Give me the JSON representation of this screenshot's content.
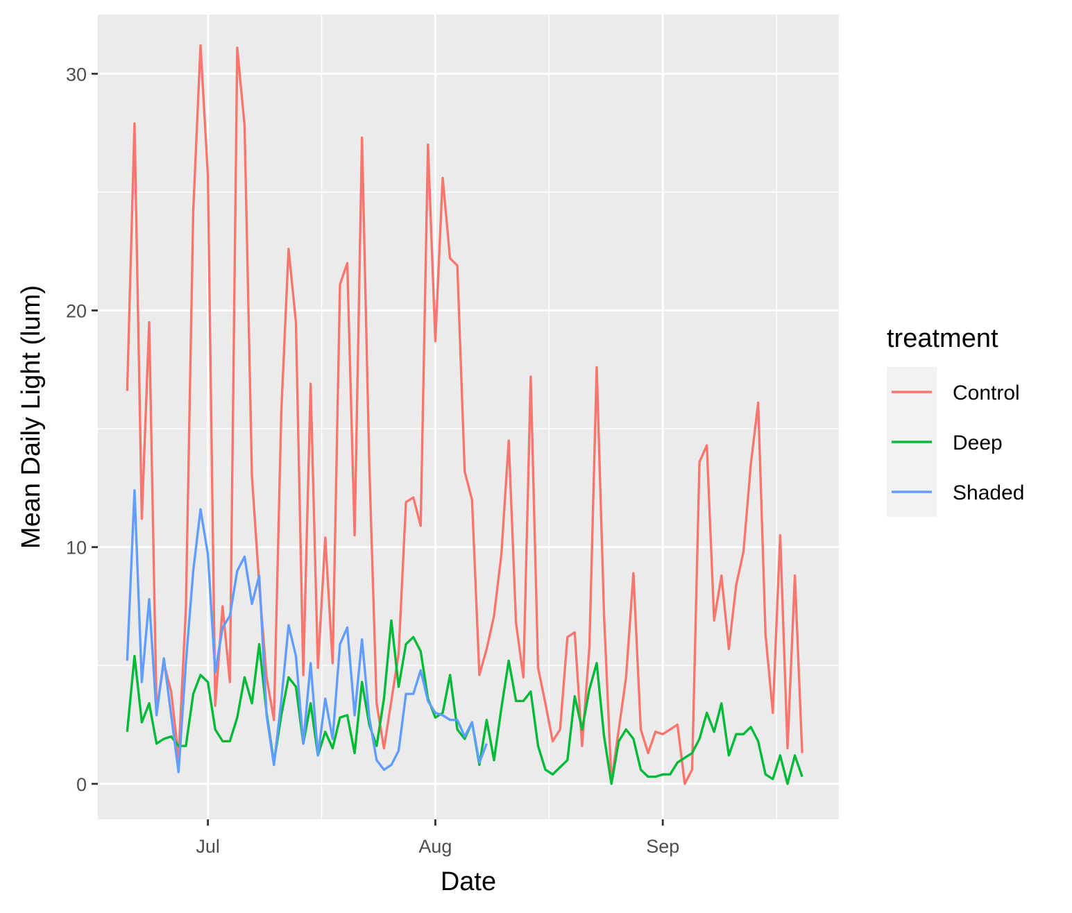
{
  "chart_data": {
    "type": "line",
    "title": "",
    "xlabel": "Date",
    "ylabel": "Mean Daily Light (lum)",
    "x_ticks": [
      {
        "date": "2021-07-01",
        "label": "Jul"
      },
      {
        "date": "2021-08-01",
        "label": "Aug"
      },
      {
        "date": "2021-09-01",
        "label": "Sep"
      }
    ],
    "y_ticks": [
      0,
      10,
      20,
      30
    ],
    "xlim": [
      "2021-06-16",
      "2021-09-25"
    ],
    "ylim": [
      -1.5,
      32.5
    ],
    "grid": true,
    "legend": {
      "title": "treatment",
      "position": "right"
    },
    "series": [
      {
        "name": "Control",
        "color": "#F8766D",
        "start_date": "2021-06-20",
        "values": [
          16.6,
          27.9,
          11.2,
          19.5,
          3.1,
          5.1,
          3.9,
          1.1,
          7.4,
          24.2,
          31.2,
          25.7,
          3.3,
          7.5,
          4.3,
          31.1,
          27.8,
          13.0,
          8.4,
          4.5,
          2.7,
          15.7,
          22.6,
          19.5,
          4.6,
          16.9,
          4.9,
          10.4,
          5.1,
          21.1,
          22.0,
          10.5,
          27.3,
          13.5,
          3.4,
          1.5,
          3.5,
          5.5,
          11.9,
          12.1,
          10.9,
          27.0,
          18.7,
          25.6,
          22.2,
          21.9,
          13.2,
          12.0,
          4.6,
          5.7,
          7.1,
          9.7,
          14.5,
          6.8,
          4.5,
          17.2,
          4.9,
          3.4,
          1.8,
          2.3,
          6.2,
          6.4,
          1.6,
          5.8,
          17.6,
          7.1,
          0.1,
          2.3,
          4.5,
          8.9,
          2.3,
          1.3,
          2.2,
          2.1,
          2.3,
          2.5,
          0.0,
          0.6,
          13.6,
          14.3,
          6.9,
          8.8,
          5.7,
          8.4,
          9.8,
          13.5,
          16.1,
          6.3,
          3.0,
          10.5,
          1.5,
          8.8,
          1.3
        ]
      },
      {
        "name": "Deep",
        "color": "#00BA38",
        "start_date": "2021-06-20",
        "values": [
          2.2,
          5.4,
          2.6,
          3.4,
          1.7,
          1.9,
          2.0,
          1.6,
          1.6,
          3.8,
          4.6,
          4.3,
          2.3,
          1.8,
          1.8,
          2.8,
          4.5,
          3.4,
          5.9,
          3.0,
          0.9,
          2.9,
          4.5,
          4.1,
          1.7,
          3.4,
          1.2,
          2.2,
          1.5,
          2.8,
          2.9,
          1.3,
          4.3,
          2.5,
          1.6,
          3.6,
          6.9,
          4.1,
          5.9,
          6.2,
          5.6,
          3.6,
          2.8,
          3.0,
          4.6,
          2.3,
          1.9,
          2.6,
          0.8,
          2.7,
          1.0,
          3.2,
          5.2,
          3.5,
          3.5,
          3.9,
          1.6,
          0.6,
          0.4,
          0.7,
          1.0,
          3.7,
          2.3,
          4.0,
          5.1,
          2.0,
          0.0,
          1.8,
          2.3,
          1.9,
          0.6,
          0.3,
          0.3,
          0.4,
          0.4,
          0.9,
          1.1,
          1.3,
          1.9,
          3.0,
          2.2,
          3.4,
          1.2,
          2.1,
          2.1,
          2.4,
          1.8,
          0.4,
          0.2,
          1.2,
          0.0,
          1.2,
          0.3
        ]
      },
      {
        "name": "Shaded",
        "color": "#619CFF",
        "start_date": "2021-06-20",
        "values": [
          5.2,
          12.4,
          4.3,
          7.8,
          2.9,
          5.3,
          2.9,
          0.5,
          5.1,
          9.0,
          11.6,
          9.7,
          4.7,
          6.6,
          7.1,
          9.0,
          9.6,
          7.6,
          8.8,
          2.9,
          0.8,
          3.5,
          6.7,
          5.4,
          1.7,
          5.1,
          1.2,
          3.6,
          1.9,
          5.9,
          6.6,
          2.9,
          6.1,
          2.8,
          1.0,
          0.6,
          0.8,
          1.4,
          3.8,
          3.8,
          4.8,
          3.5,
          3.0,
          2.9,
          2.7,
          2.7,
          2.0,
          2.6,
          0.9,
          1.7
        ]
      }
    ]
  }
}
